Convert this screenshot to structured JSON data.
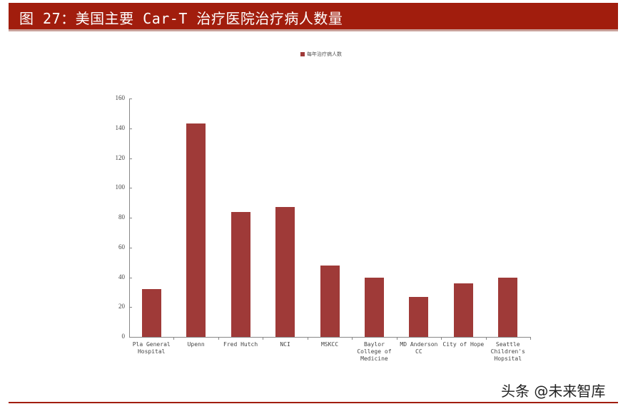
{
  "header": {
    "title": "图 27：美国主要 Car-T 治疗医院治疗病人数量"
  },
  "legend": {
    "label": "每年治疗病人数",
    "color": "#9f3a38"
  },
  "watermark": "头条 @未来智库",
  "chart_data": {
    "type": "bar",
    "title": "",
    "categories": [
      "Pla General Hospital",
      "Upenn",
      "Fred Hutch",
      "NCI",
      "MSKCC",
      "Baylor College of Medicine",
      "MD Anderson CC",
      "City of Hope",
      "Seattle Children's Hopsital"
    ],
    "category_labels": [
      "Pla General\nHospital",
      "Upenn",
      "Fred Hutch",
      "NCI",
      "MSKCC",
      "Baylor\nCollege of\nMedicine",
      "MD Anderson\nCC",
      "City of Hope",
      "Seattle\nChildren's\nHopsital"
    ],
    "series": [
      {
        "name": "每年治疗病人数",
        "values": [
          32,
          143,
          84,
          87,
          48,
          40,
          27,
          36,
          40
        ],
        "color": "#9f3a38"
      }
    ],
    "values": [
      32,
      143,
      84,
      87,
      48,
      40,
      27,
      36,
      40
    ],
    "xlabel": "",
    "ylabel": "",
    "ylim": [
      0,
      160
    ],
    "yticks": [
      "0",
      "20",
      "40",
      "60",
      "80",
      "100",
      "120",
      "140",
      "160"
    ],
    "grid": false,
    "legend_position": "top"
  }
}
